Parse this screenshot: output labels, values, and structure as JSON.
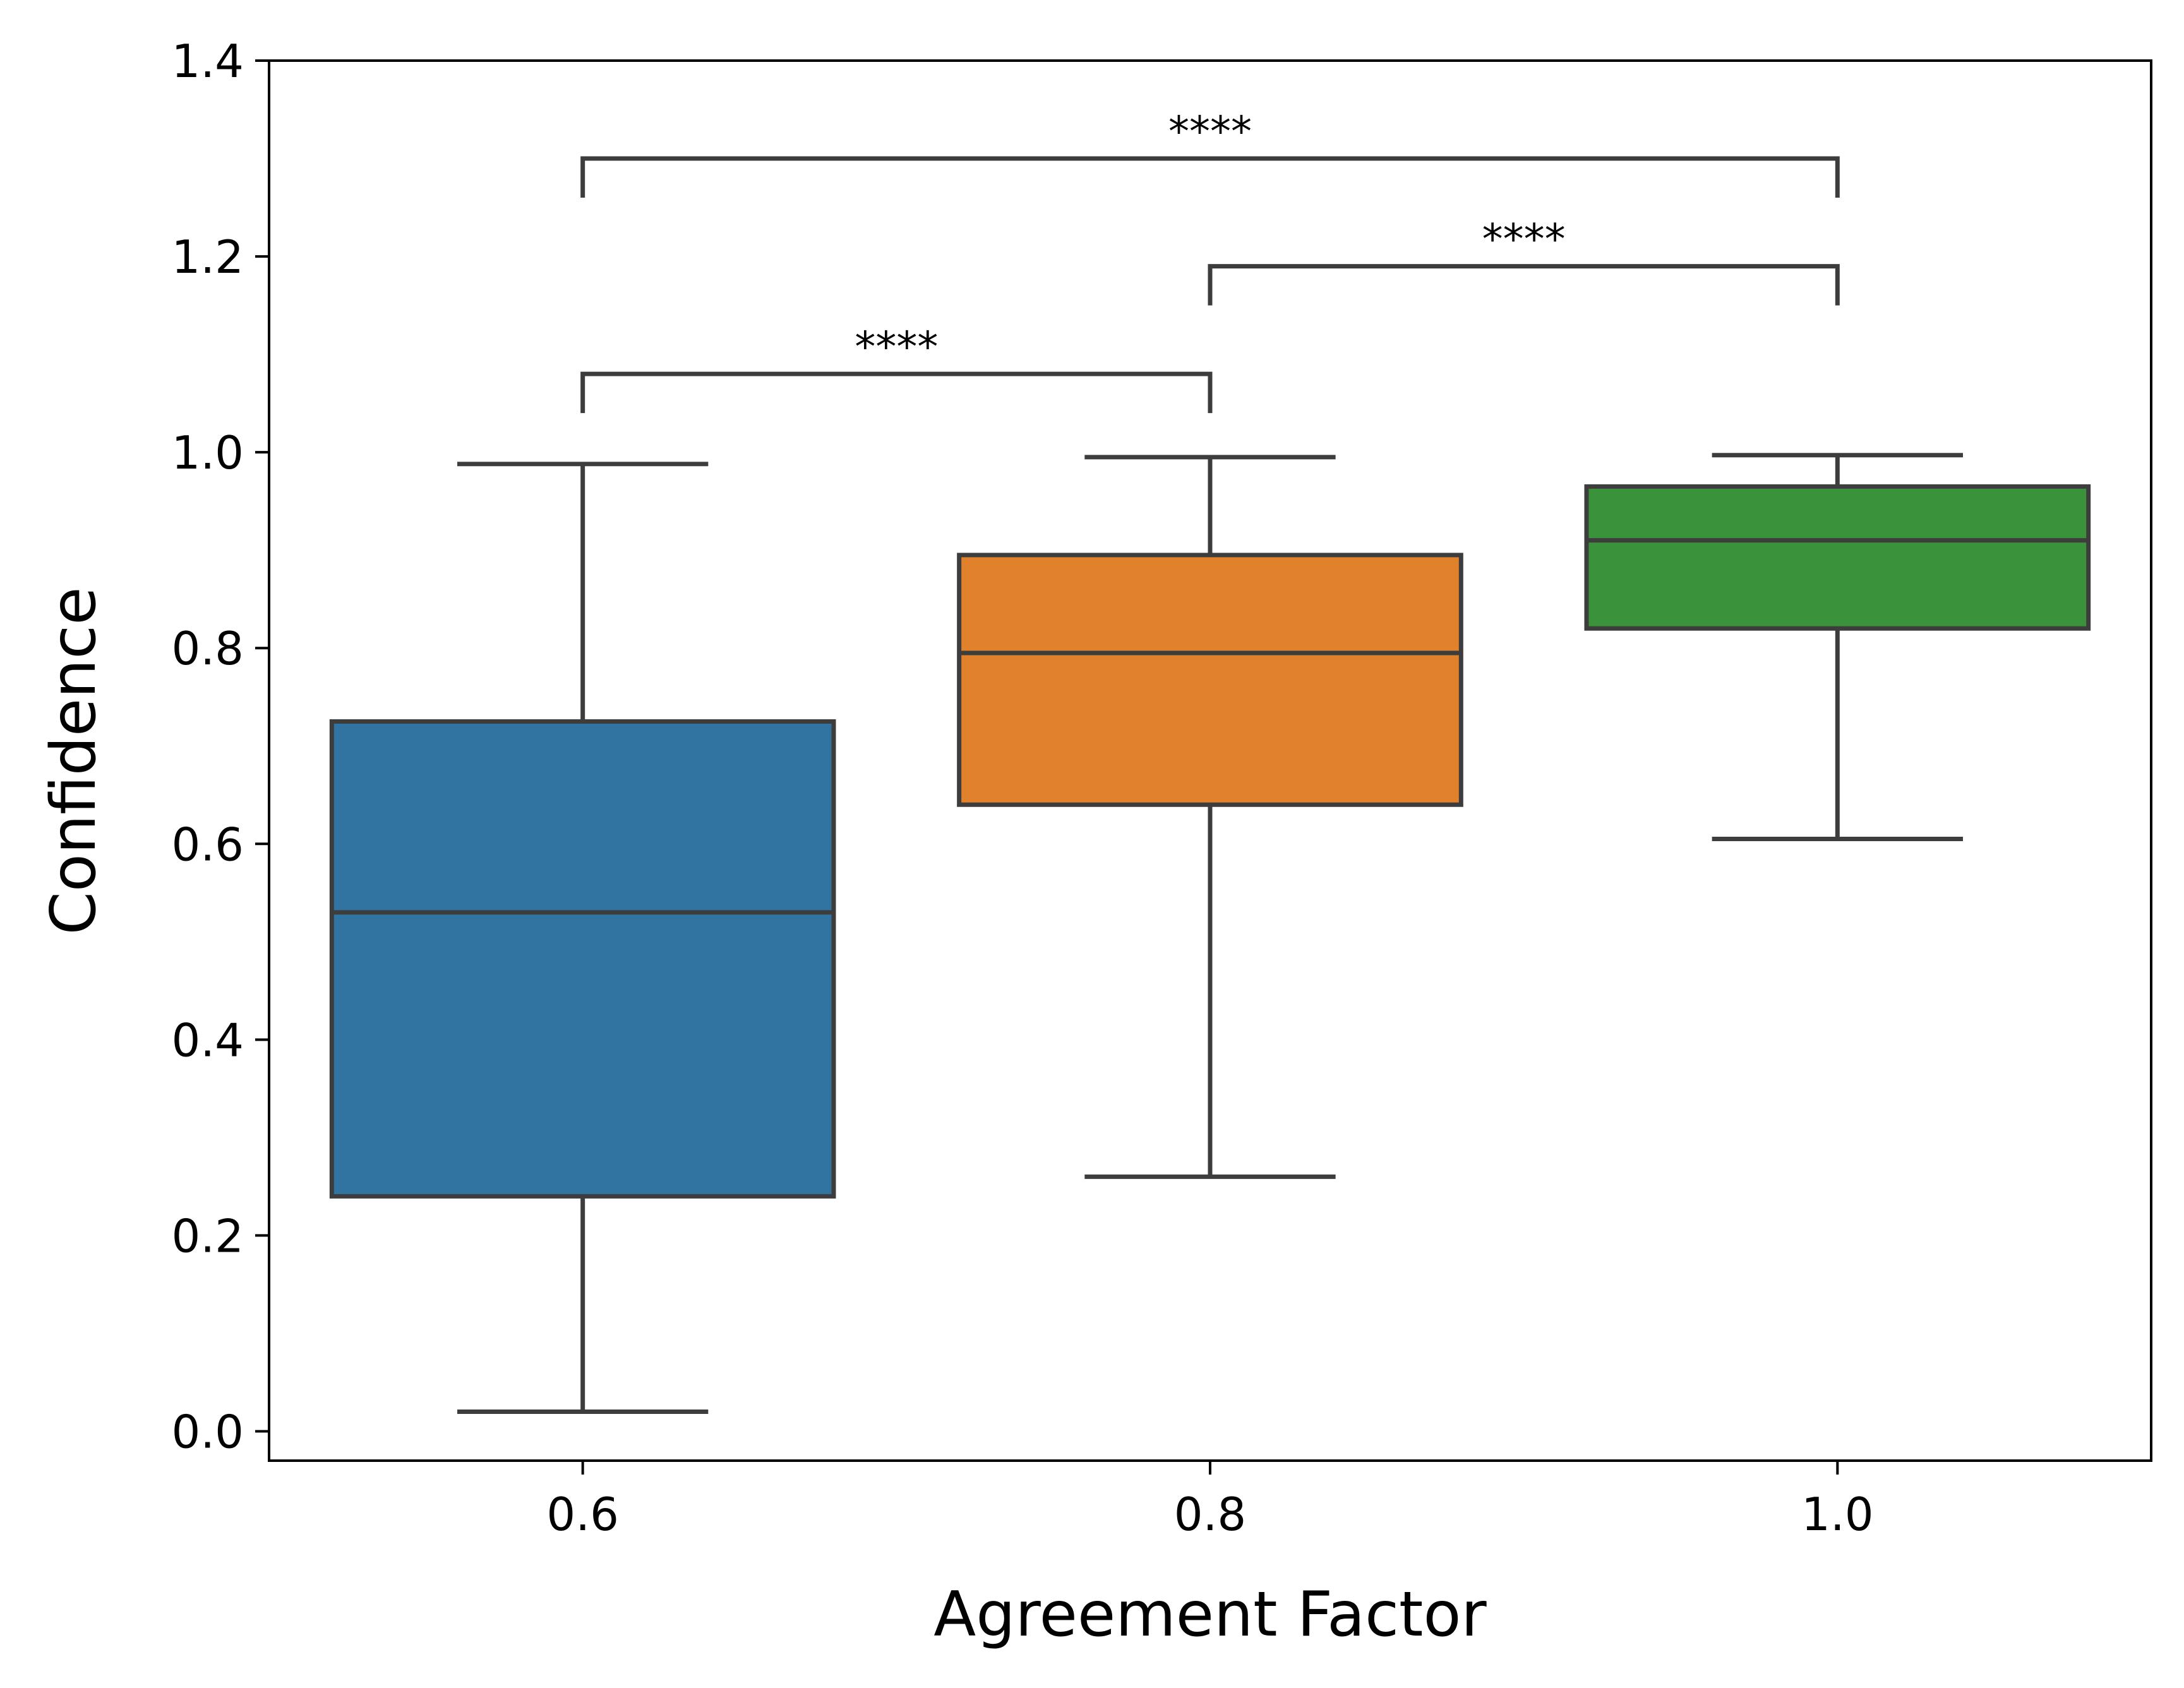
{
  "chart_data": {
    "type": "box",
    "xlabel": "Agreement Factor",
    "ylabel": "Confidence",
    "categories": [
      "0.6",
      "0.8",
      "1.0"
    ],
    "ylim": [
      -0.03,
      1.4
    ],
    "yticks": [
      "0.0",
      "0.2",
      "0.4",
      "0.6",
      "0.8",
      "1.0",
      "1.2",
      "1.4"
    ],
    "grid": false,
    "boxes": [
      {
        "category": "0.6",
        "whisker_low": 0.02,
        "q1": 0.24,
        "median": 0.53,
        "q3": 0.725,
        "whisker_high": 0.988,
        "color": "#3274a1"
      },
      {
        "category": "0.8",
        "whisker_low": 0.26,
        "q1": 0.64,
        "median": 0.795,
        "q3": 0.895,
        "whisker_high": 0.995,
        "color": "#e1812c"
      },
      {
        "category": "1.0",
        "whisker_low": 0.605,
        "q1": 0.82,
        "median": 0.91,
        "q3": 0.965,
        "whisker_high": 0.997,
        "color": "#3a923a"
      }
    ],
    "annotations": [
      {
        "from": "0.6",
        "to": "0.8",
        "y": 1.08,
        "label": "****"
      },
      {
        "from": "0.8",
        "to": "1.0",
        "y": 1.19,
        "label": "****"
      },
      {
        "from": "0.6",
        "to": "1.0",
        "y": 1.3,
        "label": "****"
      }
    ]
  }
}
